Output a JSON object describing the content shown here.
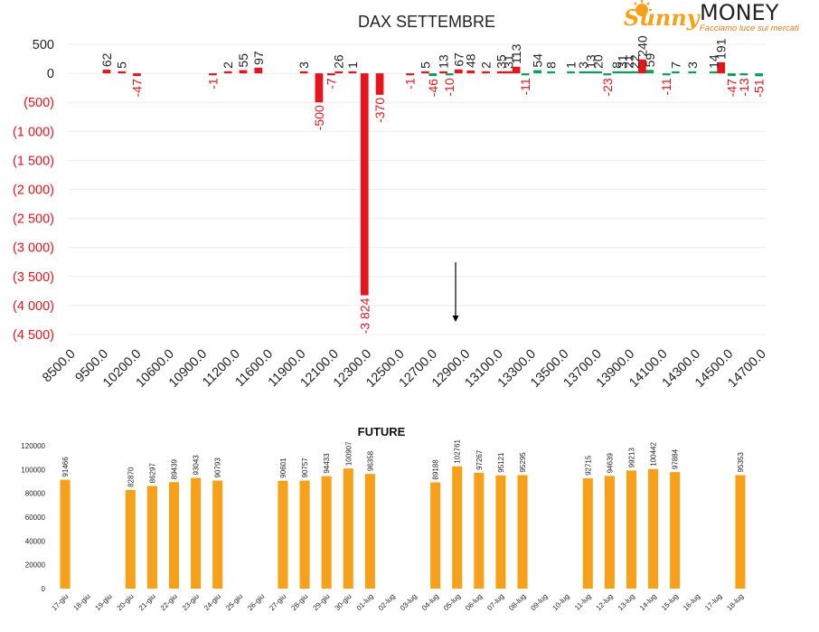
{
  "logo": {
    "brand_sunny": "Sunny",
    "brand_money": "MONEY",
    "tagline": "Facciamo luce sui mercati"
  },
  "colors": {
    "positive": "#e8131b",
    "negative": "#0a9d5b",
    "future": "#f7a11a",
    "neg_label": "#e8131b",
    "text": "#222222"
  },
  "chart_data": [
    {
      "type": "bar",
      "title": "DAX SETTEMBRE",
      "ylim": [
        -4500,
        500
      ],
      "yticks": [
        500,
        0,
        -500,
        -1000,
        -1500,
        -2000,
        -2500,
        -3000,
        -3500,
        -4000,
        -4500
      ],
      "ytick_labels": [
        "500",
        "0",
        "(500)",
        "(1 000)",
        "(1 500)",
        "(2 000)",
        "(2 500)",
        "(3 000)",
        "(3 500)",
        "(4 000)",
        "(4 500)"
      ],
      "xtick_labels": [
        "8500.0",
        "9500.0",
        "10200.0",
        "10600.0",
        "10900.0",
        "11200.0",
        "11600.0",
        "11900.0",
        "12100.0",
        "12300.0",
        "12500.0",
        "12700.0",
        "12900.0",
        "13100.0",
        "13300.0",
        "13500.0",
        "13700.0",
        "13900.0",
        "14100.0",
        "14300.0",
        "14500.0",
        "14700.0"
      ],
      "bars": [
        {
          "x": 2,
          "value": 62,
          "color": "red"
        },
        {
          "x": 3,
          "value": 5,
          "color": "red"
        },
        {
          "x": 4,
          "value": -47,
          "color": "red"
        },
        {
          "x": 9,
          "value": -1,
          "color": "red"
        },
        {
          "x": 10,
          "value": 2,
          "color": "red"
        },
        {
          "x": 11,
          "value": 55,
          "color": "red"
        },
        {
          "x": 12,
          "value": 97,
          "color": "red"
        },
        {
          "x": 15,
          "value": 3,
          "color": "red"
        },
        {
          "x": 16,
          "value": -500,
          "color": "red"
        },
        {
          "x": 16.8,
          "value": -7,
          "color": "red"
        },
        {
          "x": 17.3,
          "value": 26,
          "color": "red"
        },
        {
          "x": 18.2,
          "value": 1,
          "color": "red"
        },
        {
          "x": 19,
          "value": -3824,
          "color": "red"
        },
        {
          "x": 20,
          "value": -370,
          "color": "red"
        },
        {
          "x": 22,
          "value": -1,
          "color": "red"
        },
        {
          "x": 23,
          "value": 5,
          "color": "red"
        },
        {
          "x": 23.5,
          "value": -46,
          "color": "green"
        },
        {
          "x": 24.2,
          "value": 13,
          "color": "red"
        },
        {
          "x": 24.6,
          "value": -10,
          "color": "green"
        },
        {
          "x": 25.2,
          "value": 67,
          "color": "red"
        },
        {
          "x": 26,
          "value": 48,
          "color": "red"
        },
        {
          "x": 27,
          "value": 2,
          "color": "red"
        },
        {
          "x": 28,
          "value": 35,
          "color": "red"
        },
        {
          "x": 28.5,
          "value": 31,
          "color": "red"
        },
        {
          "x": 29,
          "value": 113,
          "color": "red"
        },
        {
          "x": 29.6,
          "value": -11,
          "color": "green"
        },
        {
          "x": 30.4,
          "value": 54,
          "color": "green"
        },
        {
          "x": 31.3,
          "value": 8,
          "color": "green"
        },
        {
          "x": 32.6,
          "value": 1,
          "color": "green"
        },
        {
          "x": 33.4,
          "value": 3,
          "color": "green"
        },
        {
          "x": 33.9,
          "value": 13,
          "color": "green"
        },
        {
          "x": 34.4,
          "value": 20,
          "color": "green"
        },
        {
          "x": 35,
          "value": -23,
          "color": "green"
        },
        {
          "x": 35.6,
          "value": 8,
          "color": "green"
        },
        {
          "x": 36,
          "value": 31,
          "color": "green"
        },
        {
          "x": 36.4,
          "value": 21,
          "color": "green"
        },
        {
          "x": 36.8,
          "value": 22,
          "color": "green"
        },
        {
          "x": 37.3,
          "value": 240,
          "color": "red"
        },
        {
          "x": 37.8,
          "value": 59,
          "color": "green"
        },
        {
          "x": 38.9,
          "value": -11,
          "color": "green"
        },
        {
          "x": 39.5,
          "value": 7,
          "color": "green"
        },
        {
          "x": 40.6,
          "value": 3,
          "color": "green"
        },
        {
          "x": 42,
          "value": 14,
          "color": "green"
        },
        {
          "x": 42.5,
          "value": 191,
          "color": "red"
        },
        {
          "x": 43.2,
          "value": -47,
          "color": "green"
        },
        {
          "x": 44,
          "value": -13,
          "color": "green"
        },
        {
          "x": 45,
          "value": -51,
          "color": "green"
        }
      ]
    },
    {
      "type": "bar",
      "title": "FUTURE",
      "ylim": [
        0,
        120000
      ],
      "yticks": [
        0,
        20000,
        40000,
        60000,
        80000,
        100000,
        120000
      ],
      "categories": [
        "17-giu",
        "18-giu",
        "19-giu",
        "20-giu",
        "21-giu",
        "22-giu",
        "23-giu",
        "24-giu",
        "25-giu",
        "26-giu",
        "27-giu",
        "28-giu",
        "29-giu",
        "30-giu",
        "01-lug",
        "02-lug",
        "03-lug",
        "04-lug",
        "05-lug",
        "06-lug",
        "07-lug",
        "08-lug",
        "09-lug",
        "10-lug",
        "11-lug",
        "12-lug",
        "13-lug",
        "14-lug",
        "15-lug",
        "16-lug",
        "17-lug",
        "18-lug"
      ],
      "values": [
        91466,
        null,
        null,
        82870,
        86297,
        89439,
        93043,
        90793,
        null,
        null,
        90601,
        90757,
        94433,
        100907,
        96358,
        null,
        null,
        89188,
        102761,
        97267,
        95121,
        95295,
        null,
        null,
        92715,
        94639,
        99213,
        100442,
        97884,
        null,
        null,
        95353
      ]
    }
  ]
}
